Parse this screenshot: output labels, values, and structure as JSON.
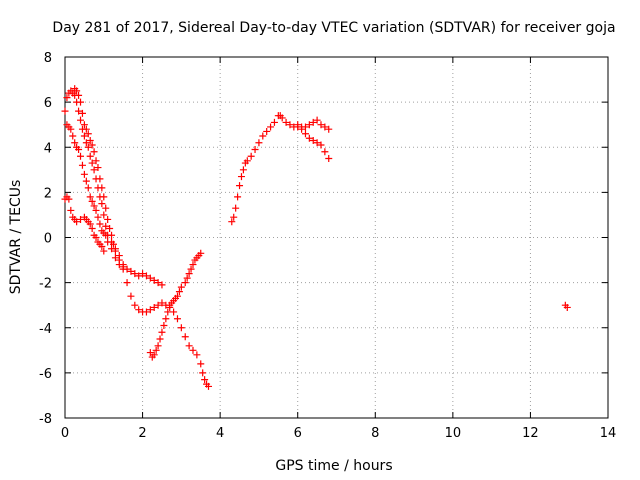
{
  "chart_data": {
    "type": "scatter",
    "title": "Day 281 of 2017, Sidereal Day-to-day VTEC variation (SDTVAR) for receiver goja",
    "xlabel": "GPS time / hours",
    "ylabel": "SDTVAR / TECUs",
    "xlim": [
      0,
      14
    ],
    "ylim": [
      -8,
      8
    ],
    "xticks": [
      0,
      2,
      4,
      6,
      8,
      10,
      12,
      14
    ],
    "yticks": [
      -8,
      -6,
      -4,
      -2,
      0,
      2,
      4,
      6,
      8
    ],
    "xtick_labels": [
      "0",
      "2",
      "4",
      "6",
      "8",
      "10",
      "12",
      "14"
    ],
    "ytick_labels": [
      "-8",
      "-6",
      "-4",
      "-2",
      "0",
      "2",
      "4",
      "6",
      "8"
    ],
    "grid": true,
    "legend": "none",
    "marker": "plus",
    "colors": {
      "series": "#ff0000",
      "grid": "#a0a0a0",
      "axis": "#000000"
    },
    "series": [
      {
        "name": "",
        "points": [
          [
            0.0,
            5.6
          ],
          [
            0.05,
            6.2
          ],
          [
            0.1,
            6.4
          ],
          [
            0.15,
            6.5
          ],
          [
            0.2,
            6.4
          ],
          [
            0.25,
            6.3
          ],
          [
            0.3,
            6.0
          ],
          [
            0.35,
            5.6
          ],
          [
            0.4,
            5.2
          ],
          [
            0.45,
            4.8
          ],
          [
            0.5,
            4.5
          ],
          [
            0.55,
            4.2
          ],
          [
            0.6,
            4.0
          ],
          [
            0.65,
            3.6
          ],
          [
            0.7,
            3.3
          ],
          [
            0.75,
            3.0
          ],
          [
            0.8,
            2.6
          ],
          [
            0.85,
            2.2
          ],
          [
            0.9,
            1.8
          ],
          [
            0.95,
            1.5
          ],
          [
            1.0,
            1.0
          ],
          [
            1.05,
            0.5
          ],
          [
            1.1,
            0.1
          ],
          [
            1.2,
            -0.2
          ],
          [
            1.3,
            -0.6
          ],
          [
            1.4,
            -1.0
          ],
          [
            1.5,
            -1.4
          ],
          [
            1.6,
            -2.0
          ],
          [
            1.7,
            -2.6
          ],
          [
            1.8,
            -3.0
          ],
          [
            1.9,
            -3.2
          ],
          [
            2.0,
            -3.3
          ],
          [
            2.1,
            -3.3
          ],
          [
            2.2,
            -3.2
          ],
          [
            2.3,
            -3.1
          ],
          [
            2.4,
            -3.0
          ],
          [
            2.5,
            -2.9
          ],
          [
            2.6,
            -3.0
          ],
          [
            2.7,
            -3.1
          ],
          [
            2.8,
            -3.3
          ],
          [
            2.9,
            -3.6
          ],
          [
            3.0,
            -4.0
          ],
          [
            3.1,
            -4.4
          ],
          [
            3.2,
            -4.8
          ],
          [
            3.3,
            -5.0
          ],
          [
            3.4,
            -5.2
          ],
          [
            3.5,
            -5.6
          ],
          [
            3.55,
            -6.0
          ],
          [
            3.6,
            -6.3
          ],
          [
            3.65,
            -6.5
          ],
          [
            3.7,
            -6.6
          ]
        ]
      },
      {
        "name": "",
        "points": [
          [
            0.05,
            5.0
          ],
          [
            0.1,
            4.9
          ],
          [
            0.15,
            4.8
          ],
          [
            0.2,
            4.5
          ],
          [
            0.25,
            4.2
          ],
          [
            0.3,
            4.0
          ],
          [
            0.35,
            3.9
          ],
          [
            0.4,
            3.6
          ],
          [
            0.45,
            3.2
          ],
          [
            0.5,
            2.8
          ],
          [
            0.55,
            2.5
          ],
          [
            0.6,
            2.2
          ],
          [
            0.65,
            1.8
          ],
          [
            0.7,
            1.6
          ],
          [
            0.75,
            1.4
          ],
          [
            0.8,
            1.2
          ],
          [
            0.85,
            0.9
          ],
          [
            0.9,
            0.6
          ],
          [
            0.95,
            0.3
          ],
          [
            1.0,
            0.2
          ],
          [
            1.05,
            0.1
          ],
          [
            1.1,
            -0.2
          ],
          [
            1.2,
            -0.5
          ],
          [
            1.3,
            -0.9
          ],
          [
            1.4,
            -1.2
          ],
          [
            1.5,
            -1.3
          ],
          [
            1.6,
            -1.4
          ],
          [
            1.7,
            -1.5
          ],
          [
            1.8,
            -1.6
          ],
          [
            1.9,
            -1.7
          ],
          [
            2.0,
            -1.6
          ],
          [
            2.1,
            -1.7
          ],
          [
            2.2,
            -1.8
          ],
          [
            2.3,
            -1.9
          ],
          [
            2.4,
            -2.0
          ],
          [
            2.5,
            -2.1
          ]
        ]
      },
      {
        "name": "",
        "points": [
          [
            0.25,
            6.6
          ],
          [
            0.3,
            6.5
          ],
          [
            0.35,
            6.3
          ],
          [
            0.4,
            6.0
          ],
          [
            0.45,
            5.5
          ],
          [
            0.5,
            5.0
          ],
          [
            0.55,
            4.8
          ],
          [
            0.6,
            4.6
          ],
          [
            0.65,
            4.3
          ],
          [
            0.7,
            4.1
          ],
          [
            0.75,
            3.8
          ],
          [
            0.8,
            3.4
          ],
          [
            0.85,
            3.1
          ],
          [
            0.9,
            2.6
          ],
          [
            0.95,
            2.2
          ],
          [
            1.0,
            1.8
          ],
          [
            1.05,
            1.3
          ],
          [
            1.1,
            0.8
          ],
          [
            1.15,
            0.4
          ],
          [
            1.2,
            0.1
          ],
          [
            1.25,
            -0.3
          ],
          [
            1.3,
            -0.5
          ],
          [
            1.4,
            -0.8
          ],
          [
            1.5,
            -1.2
          ]
        ]
      },
      {
        "name": "",
        "points": [
          [
            0.0,
            1.7
          ],
          [
            0.05,
            1.8
          ],
          [
            0.1,
            1.7
          ],
          [
            0.15,
            1.2
          ],
          [
            0.2,
            0.9
          ],
          [
            0.25,
            0.8
          ],
          [
            0.3,
            0.7
          ],
          [
            0.4,
            0.8
          ],
          [
            0.5,
            0.9
          ],
          [
            0.55,
            0.8
          ],
          [
            0.6,
            0.7
          ],
          [
            0.65,
            0.6
          ],
          [
            0.7,
            0.4
          ],
          [
            0.75,
            0.1
          ],
          [
            0.8,
            0.0
          ],
          [
            0.85,
            -0.2
          ],
          [
            0.9,
            -0.3
          ],
          [
            0.95,
            -0.4
          ],
          [
            1.0,
            -0.6
          ]
        ]
      },
      {
        "name": "",
        "points": [
          [
            2.2,
            -5.1
          ],
          [
            2.25,
            -5.3
          ],
          [
            2.3,
            -5.2
          ],
          [
            2.35,
            -5.0
          ],
          [
            2.4,
            -4.8
          ],
          [
            2.45,
            -4.5
          ],
          [
            2.5,
            -4.2
          ],
          [
            2.55,
            -3.9
          ],
          [
            2.6,
            -3.6
          ],
          [
            2.65,
            -3.3
          ],
          [
            2.7,
            -3.0
          ],
          [
            2.75,
            -2.9
          ],
          [
            2.8,
            -2.8
          ],
          [
            2.85,
            -2.7
          ],
          [
            2.9,
            -2.6
          ],
          [
            2.95,
            -2.4
          ],
          [
            3.0,
            -2.2
          ],
          [
            3.1,
            -2.0
          ],
          [
            3.15,
            -1.8
          ],
          [
            3.2,
            -1.6
          ],
          [
            3.25,
            -1.4
          ],
          [
            3.3,
            -1.2
          ],
          [
            3.35,
            -1.0
          ],
          [
            3.4,
            -0.9
          ],
          [
            3.45,
            -0.8
          ],
          [
            3.5,
            -0.7
          ]
        ]
      },
      {
        "name": "",
        "points": [
          [
            4.3,
            0.7
          ],
          [
            4.35,
            0.9
          ],
          [
            4.4,
            1.3
          ],
          [
            4.45,
            1.8
          ],
          [
            4.5,
            2.3
          ],
          [
            4.55,
            2.7
          ],
          [
            4.6,
            3.0
          ],
          [
            4.65,
            3.3
          ],
          [
            4.7,
            3.4
          ],
          [
            4.8,
            3.6
          ],
          [
            4.9,
            3.9
          ],
          [
            5.0,
            4.2
          ],
          [
            5.1,
            4.5
          ],
          [
            5.2,
            4.7
          ],
          [
            5.3,
            4.9
          ],
          [
            5.4,
            5.1
          ],
          [
            5.5,
            5.4
          ],
          [
            5.55,
            5.4
          ],
          [
            5.6,
            5.3
          ],
          [
            5.7,
            5.1
          ],
          [
            5.8,
            5.0
          ],
          [
            5.9,
            4.9
          ],
          [
            6.0,
            4.9
          ],
          [
            6.1,
            4.8
          ],
          [
            6.2,
            4.6
          ],
          [
            6.3,
            4.4
          ],
          [
            6.4,
            4.3
          ],
          [
            6.5,
            4.2
          ],
          [
            6.6,
            4.1
          ],
          [
            6.7,
            3.8
          ],
          [
            6.8,
            3.5
          ]
        ]
      },
      {
        "name": "",
        "points": [
          [
            6.0,
            5.0
          ],
          [
            6.1,
            4.9
          ],
          [
            6.2,
            4.9
          ],
          [
            6.3,
            5.0
          ],
          [
            6.4,
            5.1
          ],
          [
            6.5,
            5.2
          ],
          [
            6.6,
            5.0
          ],
          [
            6.7,
            4.9
          ],
          [
            6.8,
            4.8
          ]
        ]
      },
      {
        "name": "",
        "points": [
          [
            12.9,
            -3.0
          ],
          [
            12.95,
            -3.1
          ]
        ]
      }
    ]
  }
}
